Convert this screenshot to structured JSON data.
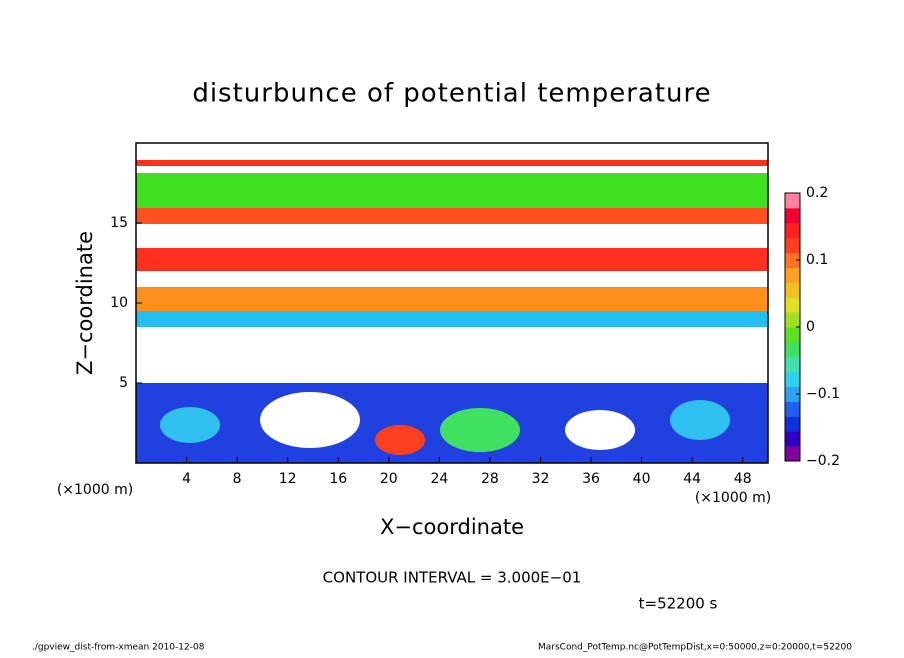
{
  "chart_data": {
    "type": "heatmap",
    "title": "disturbunce of potential temperature",
    "xlabel": "X−coordinate",
    "ylabel": "Z−coordinate",
    "xunit": "(×1000 m)",
    "yunit": "(×1000 m)",
    "xlim": [
      0,
      50
    ],
    "xticks": [
      4,
      8,
      12,
      16,
      20,
      24,
      28,
      32,
      36,
      40,
      44,
      48
    ],
    "ylim": [
      0,
      20
    ],
    "yticks": [
      5,
      10,
      15
    ],
    "colorbar": {
      "lim": [
        -0.2,
        0.2
      ],
      "ticks": [
        {
          "value": -0.2,
          "label": "−0.2"
        },
        {
          "value": -0.1,
          "label": "−0.1"
        },
        0,
        0.1,
        0.2
      ],
      "colors": [
        "#8000a0",
        "#3000c0",
        "#1030e0",
        "#2060f0",
        "#30a0f0",
        "#30d0f0",
        "#40e0b0",
        "#40e060",
        "#60e020",
        "#a0e020",
        "#e0e020",
        "#f0c020",
        "#ffa020",
        "#ff7020",
        "#ff4020",
        "#ff2020",
        "#f00030",
        "#ff80a0"
      ]
    },
    "annotation": "CONTOUR INTERVAL = 3.000E−01",
    "time_label": "t=52200 s",
    "footer_left": "./gpview_dist-from-xmean  2010-12-08",
    "footer_right": "MarsCond_PotTemp.nc@PotTempDist,x=0:50000,z=0:20000,t=52200"
  }
}
